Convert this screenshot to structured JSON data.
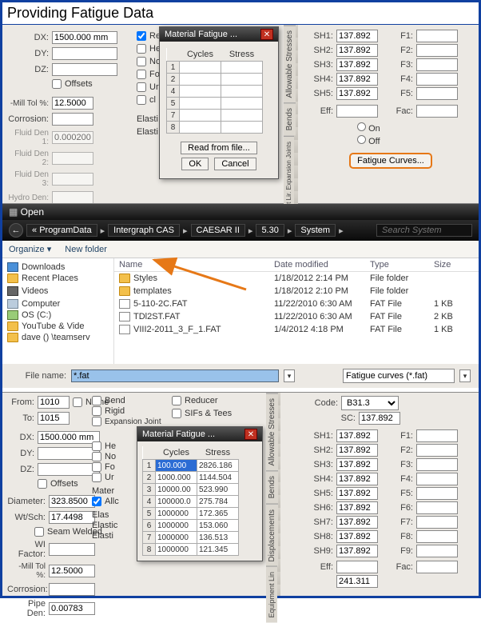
{
  "page_title": "Providing Fatigue Data",
  "top": {
    "dx_label": "DX:",
    "dx": "1500.000 mm",
    "dy_label": "DY:",
    "dy": "",
    "dz_label": "DZ:",
    "dz": "",
    "offsets_label": "Offsets",
    "mill_tol_label": "-Mill Tol %:",
    "mill_tol": "12.5000",
    "corrosion_label": "Corrosion:",
    "corrosion": "",
    "fluid_den1_label": "Fluid Den 1:",
    "fluid_den1": "0.000200",
    "fluid_den2_label": "Fluid Den 2:",
    "fluid_den2": "",
    "fluid_den3_label": "Fluid Den 3:",
    "fluid_den3": "",
    "hydro_den_label": "Hydro Den:",
    "hydro_den": "",
    "re_label": "Re",
    "he_label": "He",
    "no_label": "No",
    "fo_label": "Fo",
    "ur_label": "Ur",
    "cl_label": "cl",
    "elasti_label": "Elasti",
    "elasti2_label": "Elasti",
    "dlg": {
      "title": "Material Fatigue ...",
      "cycles_h": "Cycles",
      "stress_h": "Stress",
      "rows": [
        {
          "n": "1",
          "c": "",
          "s": ""
        },
        {
          "n": "2",
          "c": "",
          "s": ""
        },
        {
          "n": "4",
          "c": "",
          "s": ""
        },
        {
          "n": "5",
          "c": "",
          "s": ""
        },
        {
          "n": "7",
          "c": "",
          "s": ""
        },
        {
          "n": "8",
          "c": "",
          "s": ""
        }
      ],
      "read": "Read from file...",
      "ok": "OK",
      "cancel": "Cancel"
    },
    "vtabs": [
      "Allowable Stresses",
      "Bends",
      "Equipment Lir. Expansion Joints"
    ],
    "right": {
      "sh": [
        {
          "l": "SH1:",
          "v": "137.892"
        },
        {
          "l": "SH2:",
          "v": "137.892"
        },
        {
          "l": "SH3:",
          "v": "137.892"
        },
        {
          "l": "SH4:",
          "v": "137.892"
        },
        {
          "l": "SH5:",
          "v": "137.892"
        }
      ],
      "f": [
        "F1:",
        "F2:",
        "F3:",
        "F4:",
        "F5:"
      ],
      "eff": "Eff:",
      "fac": "Fac:",
      "on": "On",
      "off": "Off",
      "fatigue_btn": "Fatigue Curves..."
    }
  },
  "open": {
    "title": "Open",
    "crumbs": [
      "ProgramData",
      "Intergraph CAS",
      "CAESAR II",
      "5.30",
      "System"
    ],
    "search_ph": "Search System",
    "organize": "Organize ▾",
    "new_folder": "New folder",
    "nav": [
      {
        "ico": "ico-dl",
        "t": "Downloads"
      },
      {
        "ico": "ico-folder",
        "t": "Recent Places"
      },
      {
        "ico": "",
        "t": ""
      },
      {
        "ico": "ico-vid",
        "t": "Videos"
      },
      {
        "ico": "",
        "t": ""
      },
      {
        "ico": "ico-comp",
        "t": "Computer"
      },
      {
        "ico": "ico-disc",
        "t": "OS (C:)"
      },
      {
        "ico": "ico-folder",
        "t": "YouTube & Vide"
      },
      {
        "ico": "ico-folder",
        "t": "dave () \\teamserv"
      }
    ],
    "cols": {
      "name": "Name",
      "date": "Date modified",
      "type": "Type",
      "size": "Size"
    },
    "rows": [
      {
        "ico": "ico-folder",
        "name": "Styles",
        "date": "1/18/2012 2:14 PM",
        "type": "File folder",
        "size": ""
      },
      {
        "ico": "ico-folder",
        "name": "templates",
        "date": "1/18/2012 2:10 PM",
        "type": "File folder",
        "size": ""
      },
      {
        "ico": "ico-doc",
        "name": "5-110-2C.FAT",
        "date": "11/22/2010 6:30 AM",
        "type": "FAT File",
        "size": "1 KB"
      },
      {
        "ico": "ico-doc",
        "name": "TDl2ST.FAT",
        "date": "11/22/2010 6:30 AM",
        "type": "FAT File",
        "size": "2 KB"
      },
      {
        "ico": "ico-doc",
        "name": "VIII2-2011_3_F_1.FAT",
        "date": "1/4/2012 4:18 PM",
        "type": "FAT File",
        "size": "1 KB"
      }
    ],
    "fn_label": "File name:",
    "fn": "*.fat",
    "filter": "Fatigue curves (*.fat)"
  },
  "bot": {
    "from_label": "From:",
    "from": "1010",
    "to_label": "To:",
    "to": "1015",
    "name_label": "Name",
    "dx_label": "DX:",
    "dx": "1500.000 mm",
    "dy_label": "DY:",
    "dy": "",
    "dz_label": "DZ:",
    "dz": "",
    "offsets_label": "Offsets",
    "diameter_label": "Diameter:",
    "diameter": "323.8500",
    "wtsch_label": "Wt/Sch:",
    "wtsch": "17.4498",
    "seam_label": "Seam Welded",
    "wi_label": "WI Factor:",
    "wi": "",
    "mill_label": "-Mill Tol %:",
    "mill": "12.5000",
    "corr_label": "Corrosion:",
    "corr": "",
    "pipe_label": "Pipe Den:",
    "pipe": "0.00783",
    "opts": {
      "bend": "Bend",
      "rigid": "Rigid",
      "exp": "Expansion Joint",
      "reducer": "Reducer",
      "sifs": "SIFs & Tees",
      "he": "He",
      "no": "No",
      "fo": "Fo",
      "ur": "Ur",
      "allc": "Allc",
      "mater": "Mater",
      "elas": "Elas",
      "elastic": "Elastic",
      "elasti2": "Elasti"
    },
    "dlg": {
      "title": "Material Fatigue ...",
      "cycles_h": "Cycles",
      "stress_h": "Stress",
      "rows": [
        {
          "n": "1",
          "c": "100.000",
          "s": "2826.186"
        },
        {
          "n": "2",
          "c": "1000.000",
          "s": "1144.504"
        },
        {
          "n": "3",
          "c": "10000.00",
          "s": "523.990"
        },
        {
          "n": "4",
          "c": "100000.0",
          "s": "275.784"
        },
        {
          "n": "5",
          "c": "1000000",
          "s": "172.365"
        },
        {
          "n": "6",
          "c": "1000000",
          "s": "153.060"
        },
        {
          "n": "7",
          "c": "1000000",
          "s": "136.513"
        },
        {
          "n": "8",
          "c": "1000000",
          "s": "121.345"
        }
      ]
    },
    "vtabs": [
      "Allowable Stresses",
      "Bends",
      "Displacements",
      "Equipment Lin"
    ],
    "right": {
      "code_label": "Code:",
      "code": "B31.3",
      "sc_label": "SC:",
      "sc": "137.892",
      "sh": [
        {
          "l": "SH1:",
          "v": "137.892"
        },
        {
          "l": "SH2:",
          "v": "137.892"
        },
        {
          "l": "SH3:",
          "v": "137.892"
        },
        {
          "l": "SH4:",
          "v": "137.892"
        },
        {
          "l": "SH5:",
          "v": "137.892"
        },
        {
          "l": "SH6:",
          "v": "137.892"
        },
        {
          "l": "SH7:",
          "v": "137.892"
        },
        {
          "l": "SH8:",
          "v": "137.892"
        },
        {
          "l": "SH9:",
          "v": "137.892"
        }
      ],
      "f": [
        "F1:",
        "F2:",
        "F3:",
        "F4:",
        "F5:",
        "F6:",
        "F7:",
        "F8:",
        "F9:"
      ],
      "eff": "Eff:",
      "fac": "Fac:",
      "extra": "241.311"
    }
  },
  "colors": {
    "accent": "#e67817"
  }
}
